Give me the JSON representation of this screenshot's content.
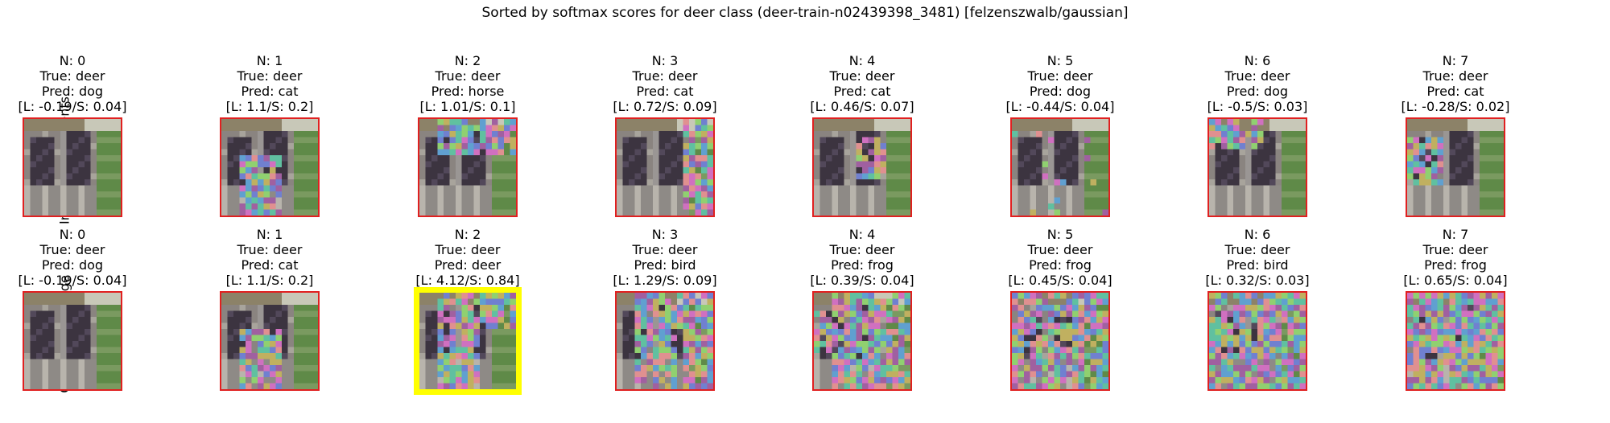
{
  "title": "Sorted by softmax scores for deer class (deer-train-n02439398_3481) [felzenszwalb/gaussian]",
  "row_labels": [
    "Indvidual Segments",
    "Cumulative Image"
  ],
  "colors": {
    "border": "#e02020",
    "highlight_border": "#ffff00"
  },
  "rows": [
    {
      "name": "individual",
      "panels": [
        {
          "n": "N: 0",
          "true": "True: deer",
          "pred": "Pred: dog",
          "score": "[L: -0.19/S: 0.04]",
          "highlight": false,
          "noise": "none"
        },
        {
          "n": "N: 1",
          "true": "True: deer",
          "pred": "Pred: cat",
          "score": "[L: 1.1/S: 0.2]",
          "highlight": false,
          "noise": "center-bottom"
        },
        {
          "n": "N: 2",
          "true": "True: deer",
          "pred": "Pred: horse",
          "score": "[L: 1.01/S: 0.1]",
          "highlight": false,
          "noise": "top"
        },
        {
          "n": "N: 3",
          "true": "True: deer",
          "pred": "Pred: cat",
          "score": "[L: 0.72/S: 0.09]",
          "highlight": false,
          "noise": "right"
        },
        {
          "n": "N: 4",
          "true": "True: deer",
          "pred": "Pred: cat",
          "score": "[L: 0.46/S: 0.07]",
          "highlight": false,
          "noise": "center-right"
        },
        {
          "n": "N: 5",
          "true": "True: deer",
          "pred": "Pred: dog",
          "score": "[L: -0.44/S: 0.04]",
          "highlight": false,
          "noise": "light"
        },
        {
          "n": "N: 6",
          "true": "True: deer",
          "pred": "Pred: dog",
          "score": "[L: -0.5/S: 0.03]",
          "highlight": false,
          "noise": "top-left"
        },
        {
          "n": "N: 7",
          "true": "True: deer",
          "pred": "Pred: cat",
          "score": "[L: -0.28/S: 0.02]",
          "highlight": false,
          "noise": "left"
        }
      ]
    },
    {
      "name": "cumulative",
      "panels": [
        {
          "n": "N: 0",
          "true": "True: deer",
          "pred": "Pred: dog",
          "score": "[L: -0.19/S: 0.04]",
          "highlight": false,
          "noise": "none"
        },
        {
          "n": "N: 1",
          "true": "True: deer",
          "pred": "Pred: cat",
          "score": "[L: 1.1/S: 0.2]",
          "highlight": false,
          "noise": "center-bottom"
        },
        {
          "n": "N: 2",
          "true": "True: deer",
          "pred": "Pred: deer",
          "score": "[L: 4.12/S: 0.84]",
          "highlight": true,
          "noise": "cum2"
        },
        {
          "n": "N: 3",
          "true": "True: deer",
          "pred": "Pred: bird",
          "score": "[L: 1.29/S: 0.09]",
          "highlight": false,
          "noise": "cum3"
        },
        {
          "n": "N: 4",
          "true": "True: deer",
          "pred": "Pred: frog",
          "score": "[L: 0.39/S: 0.04]",
          "highlight": false,
          "noise": "cum4"
        },
        {
          "n": "N: 5",
          "true": "True: deer",
          "pred": "Pred: frog",
          "score": "[L: 0.45/S: 0.04]",
          "highlight": false,
          "noise": "cum5"
        },
        {
          "n": "N: 6",
          "true": "True: deer",
          "pred": "Pred: bird",
          "score": "[L: 0.32/S: 0.03]",
          "highlight": false,
          "noise": "cum6"
        },
        {
          "n": "N: 7",
          "true": "True: deer",
          "pred": "Pred: frog",
          "score": "[L: 0.65/S: 0.04]",
          "highlight": false,
          "noise": "cum7"
        }
      ]
    }
  ]
}
